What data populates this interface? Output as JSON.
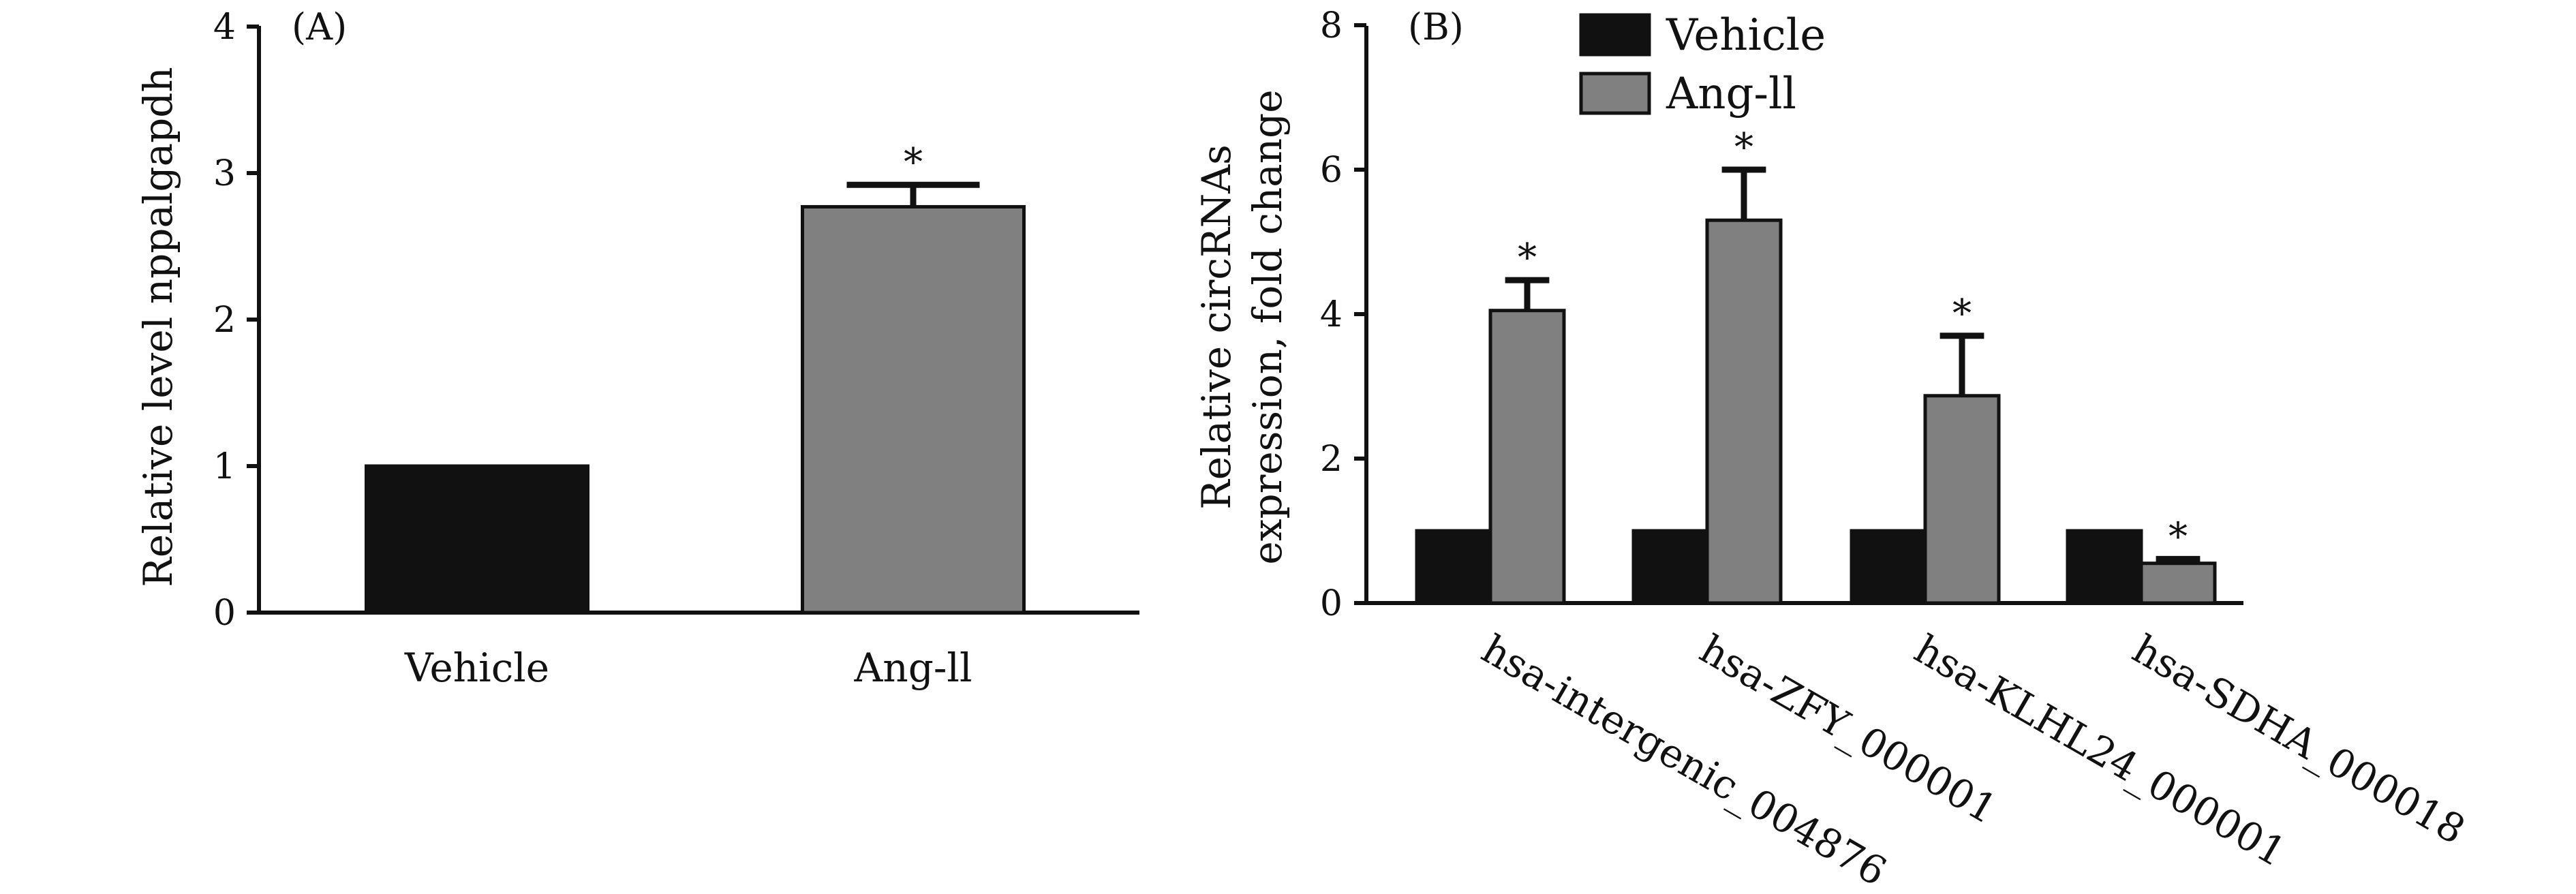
{
  "chart_data": [
    {
      "type": "bar",
      "panel_label": "(A)",
      "categories": [
        "Vehicle",
        "Ang-ll"
      ],
      "values": [
        1.0,
        2.77
      ],
      "errors": [
        0,
        0.15
      ],
      "significance": [
        "",
        "*"
      ],
      "colors": [
        "#111111",
        "#808080"
      ],
      "ylabel": "Relative level nppalgapdh",
      "ylim": [
        0,
        4
      ],
      "yticks": [
        "0",
        "1",
        "2",
        "3",
        "4"
      ]
    },
    {
      "type": "bar",
      "panel_label": "(B)",
      "categories": [
        "hsa-intergenic_004876",
        "hsa-ZFY_000001",
        "hsa-KLHL24_000001",
        "hsa-SDHA_000018"
      ],
      "series": [
        {
          "name": "Vehicle",
          "color": "#111111",
          "values": [
            1.0,
            1.0,
            1.0,
            1.0
          ],
          "errors": [
            0,
            0,
            0,
            0
          ],
          "significance": [
            "",
            "",
            "",
            ""
          ]
        },
        {
          "name": "Ang-ll",
          "color": "#808080",
          "values": [
            4.05,
            5.3,
            2.87,
            0.55
          ],
          "errors": [
            0.42,
            0.7,
            0.83,
            0.06
          ],
          "significance": [
            "*",
            "*",
            "*",
            "*"
          ]
        }
      ],
      "ylabel_lines": [
        "Relative circRNAs",
        "expression, fold change"
      ],
      "ylim": [
        0,
        8
      ],
      "yticks": [
        "0",
        "2",
        "4",
        "6",
        "8"
      ],
      "legend_position": "top"
    }
  ]
}
